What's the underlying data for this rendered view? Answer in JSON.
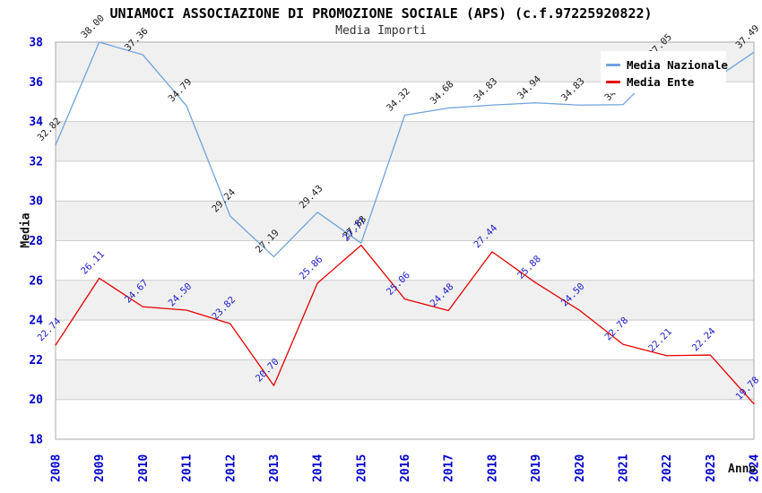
{
  "chart_data": {
    "type": "line",
    "title": "UNIAMOCI ASSOCIAZIONE DI PROMOZIONE SOCIALE (APS) (c.f.97225920822)",
    "subtitle": "Media Importi",
    "xlabel": "Anno",
    "ylabel": "Media",
    "ylim": [
      18,
      38
    ],
    "ytick_step": 2,
    "grid": true,
    "legend_position": "top-right",
    "categories": [
      "2008",
      "2009",
      "2010",
      "2011",
      "2012",
      "2013",
      "2014",
      "2015",
      "2016",
      "2017",
      "2018",
      "2019",
      "2020",
      "2021",
      "2022",
      "2023",
      "2024"
    ],
    "series": [
      {
        "name": "Media Nazionale",
        "color": "#6FA3DB",
        "label_color": "#1A1A1A",
        "values": [
          32.82,
          38.0,
          37.36,
          34.79,
          29.24,
          27.19,
          29.43,
          27.88,
          34.32,
          34.68,
          34.83,
          34.94,
          34.83,
          34.85,
          37.05,
          36.0,
          37.49
        ],
        "labels_obscured_by_legend": [
          "2021",
          "2023"
        ]
      },
      {
        "name": "Media Ente",
        "color": "#E50000",
        "label_color": "#2020CC",
        "values": [
          22.74,
          26.11,
          24.67,
          24.5,
          23.82,
          20.7,
          25.86,
          27.77,
          25.06,
          24.48,
          27.44,
          25.88,
          24.5,
          22.78,
          22.21,
          22.24,
          19.78
        ],
        "labels_obscured_by_legend": []
      }
    ],
    "styles": {
      "band_color": "#F0F0F0",
      "grid_color": "#CCCCCC",
      "axis_color": "#AAAAAA",
      "tick_label_color": "#0000CB",
      "background": "#FFFFFF"
    }
  }
}
